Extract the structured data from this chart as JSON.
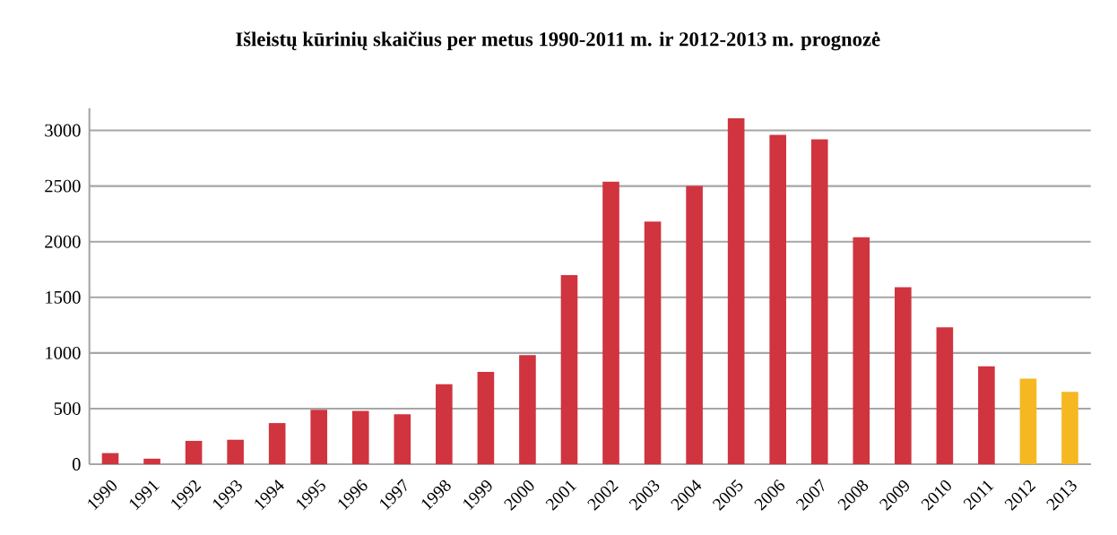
{
  "chart_data": {
    "type": "bar",
    "title": "Išleistų kūrinių skaičius per metus 1990-2011 m. ir 2012-2013 m. prognozė",
    "categories": [
      "1990",
      "1991",
      "1992",
      "1993",
      "1994",
      "1995",
      "1996",
      "1997",
      "1998",
      "1999",
      "2000",
      "2001",
      "2002",
      "2003",
      "2004",
      "2005",
      "2006",
      "2007",
      "2008",
      "2009",
      "2010",
      "2011",
      "2012",
      "2013"
    ],
    "values": [
      100,
      50,
      210,
      220,
      370,
      490,
      480,
      450,
      720,
      830,
      980,
      1700,
      2540,
      2180,
      2500,
      3110,
      2960,
      2920,
      2040,
      1590,
      1230,
      880,
      770,
      650
    ],
    "colors": [
      "#d0343f",
      "#d0343f",
      "#d0343f",
      "#d0343f",
      "#d0343f",
      "#d0343f",
      "#d0343f",
      "#d0343f",
      "#d0343f",
      "#d0343f",
      "#d0343f",
      "#d0343f",
      "#d0343f",
      "#d0343f",
      "#d0343f",
      "#d0343f",
      "#d0343f",
      "#d0343f",
      "#d0343f",
      "#d0343f",
      "#d0343f",
      "#d0343f",
      "#f5b822",
      "#f5b822"
    ],
    "ylim": [
      0,
      3200
    ],
    "yticks": [
      0,
      500,
      1000,
      1500,
      2000,
      2500,
      3000
    ],
    "grid": "y"
  }
}
